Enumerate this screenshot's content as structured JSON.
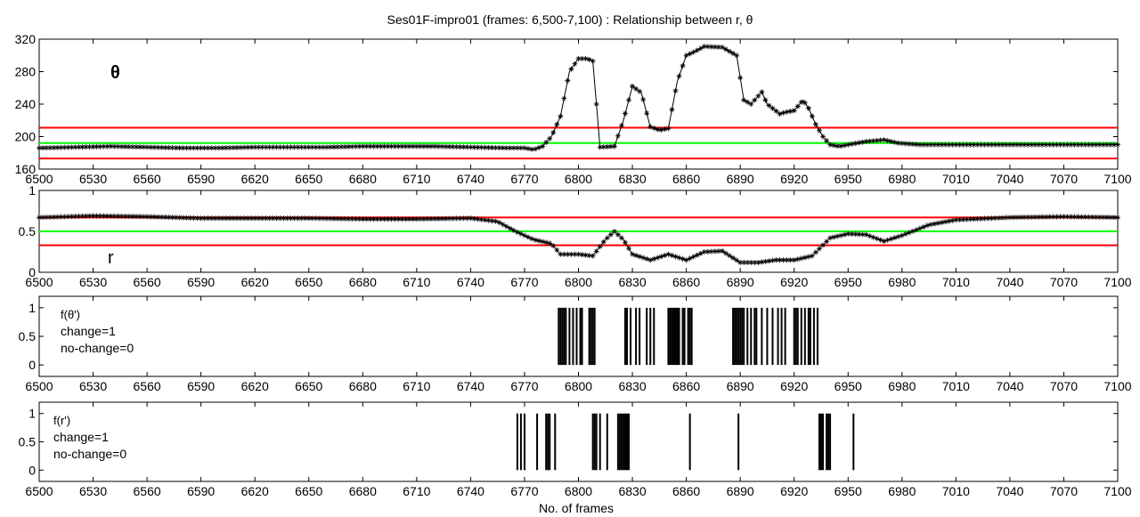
{
  "title": "Ses01F-impro01 (frames: 6,500-7,100) : Relationship between r, θ",
  "xlabel": "No. of frames",
  "x_ticks": [
    "6500",
    "6530",
    "6560",
    "6590",
    "6620",
    "6650",
    "6680",
    "6710",
    "6740",
    "6770",
    "6800",
    "6830",
    "6860",
    "6890",
    "6920",
    "6950",
    "6980",
    "7010",
    "7040",
    "7070",
    "7100"
  ],
  "colors": {
    "series": "#000000",
    "threshold": "#ff0000",
    "mean": "#00ff00",
    "axes": "#000000"
  },
  "chart_data": [
    {
      "type": "line",
      "panel": "theta",
      "label": "θ",
      "marker": "asterisk",
      "xlim": [
        6500,
        7100
      ],
      "ylim": [
        160,
        320
      ],
      "y_ticks": [
        "160",
        "200",
        "240",
        "280",
        "320"
      ],
      "thresholds": [
        173,
        211
      ],
      "mean_line": 192,
      "x": [
        6500,
        6520,
        6540,
        6560,
        6580,
        6600,
        6620,
        6640,
        6660,
        6680,
        6700,
        6720,
        6740,
        6760,
        6770,
        6775,
        6780,
        6785,
        6790,
        6795,
        6800,
        6805,
        6808,
        6812,
        6820,
        6825,
        6830,
        6835,
        6840,
        6845,
        6850,
        6855,
        6860,
        6865,
        6870,
        6880,
        6888,
        6892,
        6896,
        6902,
        6905,
        6912,
        6915,
        6920,
        6925,
        6928,
        6932,
        6936,
        6940,
        6945,
        6950,
        6960,
        6970,
        6978,
        6990,
        7010,
        7040,
        7070,
        7100
      ],
      "y": [
        186,
        187,
        188,
        187,
        186,
        186,
        187,
        187,
        187,
        188,
        188,
        188,
        187,
        186,
        186,
        184,
        188,
        200,
        225,
        280,
        296,
        296,
        293,
        187,
        188,
        220,
        262,
        254,
        212,
        208,
        210,
        268,
        300,
        305,
        311,
        310,
        300,
        245,
        240,
        255,
        240,
        228,
        230,
        232,
        245,
        235,
        215,
        200,
        190,
        188,
        190,
        194,
        196,
        192,
        190,
        190,
        190,
        190,
        190
      ]
    },
    {
      "type": "line",
      "panel": "r",
      "label": "r",
      "marker": "asterisk",
      "xlim": [
        6500,
        7100
      ],
      "ylim": [
        0,
        1
      ],
      "y_ticks": [
        "0",
        "0.5",
        "1"
      ],
      "thresholds": [
        0.33,
        0.67
      ],
      "mean_line": 0.5,
      "x": [
        6500,
        6530,
        6560,
        6590,
        6620,
        6650,
        6680,
        6710,
        6740,
        6755,
        6765,
        6775,
        6785,
        6790,
        6800,
        6808,
        6815,
        6820,
        6825,
        6830,
        6840,
        6850,
        6860,
        6870,
        6880,
        6890,
        6900,
        6910,
        6920,
        6930,
        6940,
        6950,
        6960,
        6970,
        6980,
        6995,
        7010,
        7040,
        7070,
        7100
      ],
      "y": [
        0.67,
        0.69,
        0.68,
        0.66,
        0.66,
        0.66,
        0.65,
        0.65,
        0.66,
        0.62,
        0.5,
        0.4,
        0.35,
        0.22,
        0.22,
        0.2,
        0.4,
        0.5,
        0.4,
        0.22,
        0.15,
        0.22,
        0.15,
        0.25,
        0.26,
        0.12,
        0.12,
        0.15,
        0.15,
        0.2,
        0.42,
        0.47,
        0.46,
        0.38,
        0.45,
        0.58,
        0.64,
        0.67,
        0.68,
        0.67
      ]
    },
    {
      "type": "bar",
      "panel": "f_theta",
      "label": "f(θ')",
      "legend_lines": [
        "change=1",
        "no-change=0"
      ],
      "xlim": [
        6500,
        7100
      ],
      "ylim": [
        -0.2,
        1.2
      ],
      "y_ticks": [
        "0",
        "0.5",
        "1"
      ],
      "change_frames": [
        6789,
        6790,
        6791,
        6792,
        6793,
        6795,
        6797,
        6799,
        6801,
        6802,
        6806,
        6807,
        6808,
        6809,
        6826,
        6827,
        6829,
        6832,
        6834,
        6838,
        6840,
        6842,
        6850,
        6851,
        6852,
        6853,
        6854,
        6855,
        6856,
        6858,
        6859,
        6861,
        6862,
        6863,
        6886,
        6887,
        6888,
        6889,
        6890,
        6891,
        6892,
        6894,
        6896,
        6898,
        6899,
        6902,
        6905,
        6908,
        6911,
        6913,
        6915,
        6920,
        6921,
        6922,
        6924,
        6926,
        6928,
        6929,
        6931,
        6933
      ]
    },
    {
      "type": "bar",
      "panel": "f_r",
      "label": "f(r')",
      "legend_lines": [
        "change=1",
        "no-change=0"
      ],
      "xlim": [
        6500,
        7100
      ],
      "ylim": [
        -0.2,
        1.2
      ],
      "y_ticks": [
        "0",
        "0.5",
        "1"
      ],
      "change_frames": [
        6766,
        6768,
        6770,
        6777,
        6782,
        6783,
        6784,
        6787,
        6808,
        6809,
        6810,
        6812,
        6816,
        6822,
        6823,
        6824,
        6825,
        6826,
        6827,
        6828,
        6862,
        6889,
        6934,
        6935,
        6936,
        6938,
        6939,
        6940,
        6953
      ]
    }
  ]
}
